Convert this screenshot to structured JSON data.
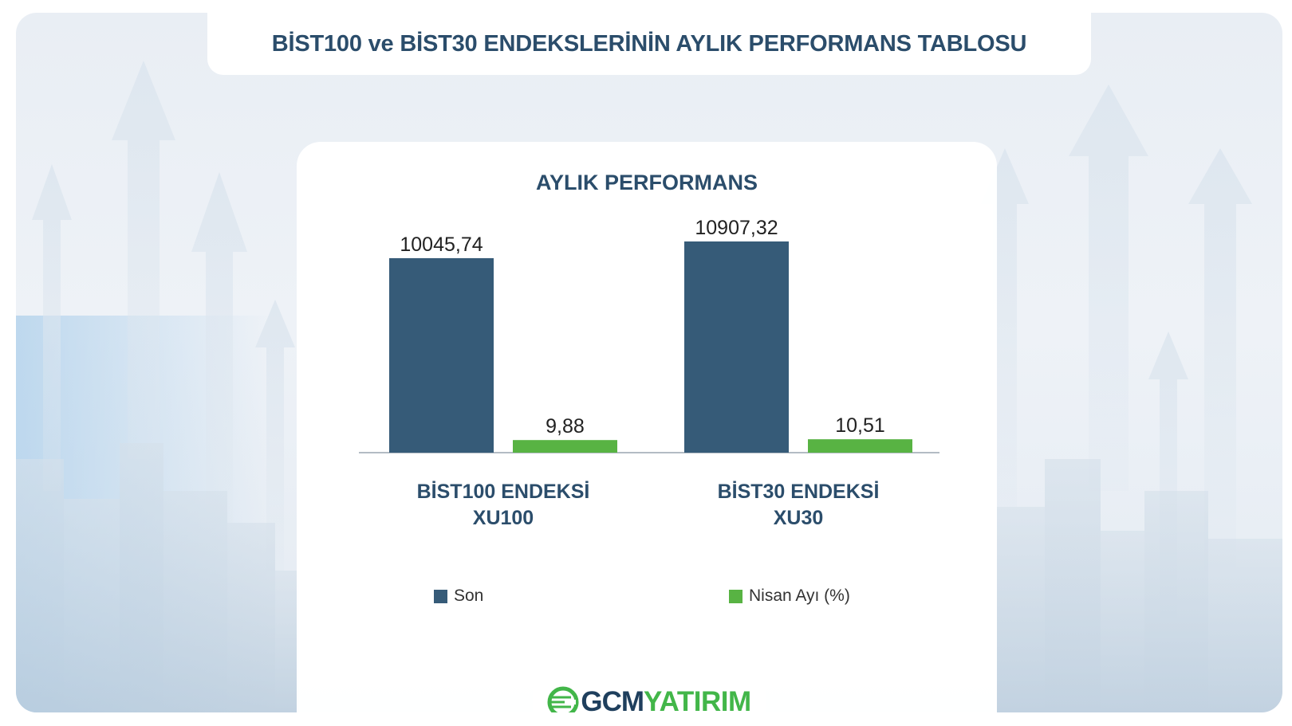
{
  "page": {
    "title": "BİST100 ve BİST30 ENDEKSLERİNİN AYLIK PERFORMANS TABLOSU"
  },
  "brand": {
    "logo_icon": "globe-logo-icon",
    "name_part1": "GCM",
    "name_part2": "YATIRIM"
  },
  "colors": {
    "series_son": "#365b78",
    "series_nisan": "#58b343",
    "title": "#2b4d6b"
  },
  "chart_data": {
    "type": "bar",
    "title": "AYLIK PERFORMANS",
    "categories": [
      {
        "line1": "BİST100 ENDEKSİ",
        "line2": "XU100"
      },
      {
        "line1": "BİST30 ENDEKSİ",
        "line2": "XU30"
      }
    ],
    "series": [
      {
        "name": "Son",
        "color": "#365b78",
        "values": [
          10045.74,
          10907.32
        ],
        "labels": [
          "10045,74",
          "10907,32"
        ]
      },
      {
        "name": "Nisan Ayı (%)",
        "color": "#58b343",
        "values": [
          9.88,
          10.51
        ],
        "labels": [
          "9,88",
          "10,51"
        ]
      }
    ],
    "legend_position": "bottom",
    "grid": false
  }
}
